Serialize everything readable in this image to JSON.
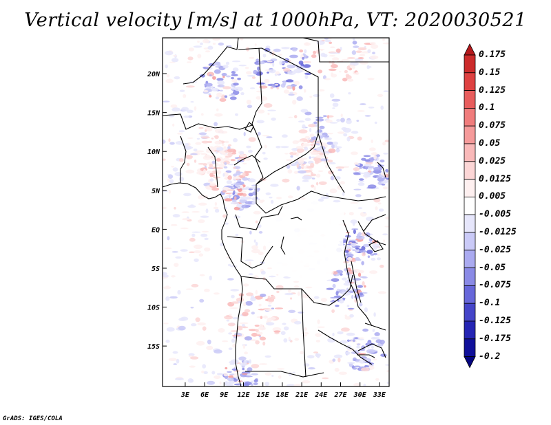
{
  "title": "Vertical velocity [m/s] at 1000hPa, VT: 2020030521",
  "credit": "GrADS: IGES/COLA",
  "chart_data": {
    "type": "heatmap",
    "variable": "Vertical velocity",
    "units": "m/s",
    "level": "1000hPa",
    "valid_time": "2020030521",
    "lon_range": [
      -0.5,
      34.5
    ],
    "lat_range": [
      -20.2,
      24.6
    ],
    "x_ticks": [
      {
        "value": 3,
        "label": "3E"
      },
      {
        "value": 6,
        "label": "6E"
      },
      {
        "value": 9,
        "label": "9E"
      },
      {
        "value": 12,
        "label": "12E"
      },
      {
        "value": 15,
        "label": "15E"
      },
      {
        "value": 18,
        "label": "18E"
      },
      {
        "value": 21,
        "label": "21E"
      },
      {
        "value": 24,
        "label": "24E"
      },
      {
        "value": 27,
        "label": "27E"
      },
      {
        "value": 30,
        "label": "30E"
      },
      {
        "value": 33,
        "label": "33E"
      }
    ],
    "y_ticks": [
      {
        "value": 20,
        "label": "20N"
      },
      {
        "value": 15,
        "label": "15N"
      },
      {
        "value": 10,
        "label": "10N"
      },
      {
        "value": 5,
        "label": "5N"
      },
      {
        "value": 0,
        "label": "EQ"
      },
      {
        "value": -5,
        "label": "5S"
      },
      {
        "value": -10,
        "label": "10S"
      },
      {
        "value": -15,
        "label": "15S"
      }
    ],
    "colorbar": {
      "labels": [
        "0.175",
        "0.15",
        "0.125",
        "0.1",
        "0.075",
        "0.05",
        "0.025",
        "0.0125",
        "0.005",
        "-0.005",
        "-0.0125",
        "-0.025",
        "-0.05",
        "-0.075",
        "-0.1",
        "-0.125",
        "-0.175",
        "-0.2"
      ],
      "colors": [
        "#b4191c",
        "#cc2b2b",
        "#de4141",
        "#e85d5d",
        "#f07c7c",
        "#f59a9a",
        "#f9b9b9",
        "#fcd6d6",
        "#fef0f0",
        "#ffffff",
        "#e6e6fb",
        "#cacaf7",
        "#aaaaf0",
        "#8a8ae6",
        "#6767da",
        "#4545c9",
        "#2525b4",
        "#10109a",
        "#050580"
      ]
    }
  }
}
